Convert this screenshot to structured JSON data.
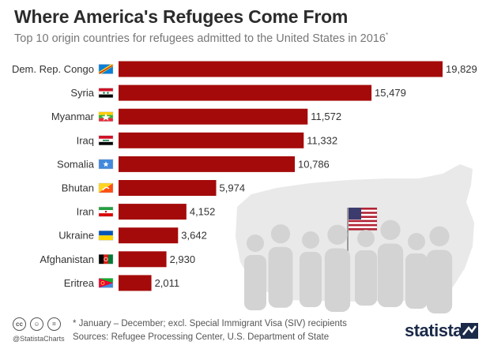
{
  "chart_data": {
    "type": "bar",
    "orientation": "horizontal",
    "title": "Where America's Refugees Come From",
    "subtitle": "Top 10 origin countries for refugees admitted to the United States in 2016",
    "subtitle_marker": "*",
    "categories": [
      "Dem. Rep. Congo",
      "Syria",
      "Myanmar",
      "Iraq",
      "Somalia",
      "Bhutan",
      "Iran",
      "Ukraine",
      "Afghanistan",
      "Eritrea"
    ],
    "values": [
      19829,
      15479,
      11572,
      11332,
      10786,
      5974,
      4152,
      3642,
      2930,
      2011
    ],
    "value_labels": [
      "19,829",
      "15,479",
      "11,572",
      "11,332",
      "10,786",
      "5,974",
      "4,152",
      "3,642",
      "2,930",
      "2,011"
    ],
    "flags": [
      "dr-congo-flag-icon",
      "syria-flag-icon",
      "myanmar-flag-icon",
      "iraq-flag-icon",
      "somalia-flag-icon",
      "bhutan-flag-icon",
      "iran-flag-icon",
      "ukraine-flag-icon",
      "afghanistan-flag-icon",
      "eritrea-flag-icon"
    ],
    "xlim": [
      0,
      19829
    ],
    "grid": false,
    "legend": "none",
    "bar_color": "#a50a0a",
    "background_illustration": [
      "usa-map-icon",
      "usa-flag-icon",
      "people-silhouettes-icon"
    ]
  },
  "footer": {
    "note": "* January – December; excl. Special Immigrant Visa (SIV) recipients",
    "source": "Sources: Refugee Processing Center, U.S. Department of State",
    "handle": "@StatistaCharts",
    "brand": "statista",
    "license_icons": [
      "cc-icon",
      "by-icon",
      "nd-icon"
    ]
  }
}
